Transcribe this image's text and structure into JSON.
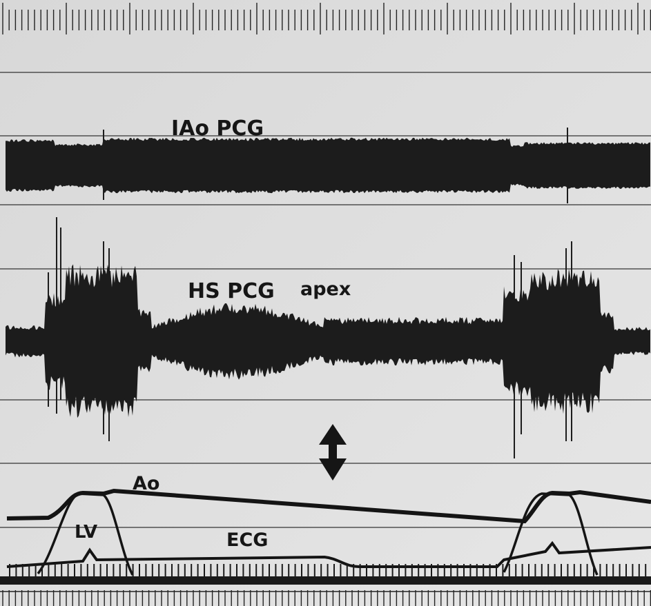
{
  "labels": {
    "iao_pcg": "IAo PCG",
    "hs_pcg": "HS PCG",
    "apex": "apex",
    "ao": "Ao",
    "lv": "LV",
    "ecg": "ECG"
  }
}
